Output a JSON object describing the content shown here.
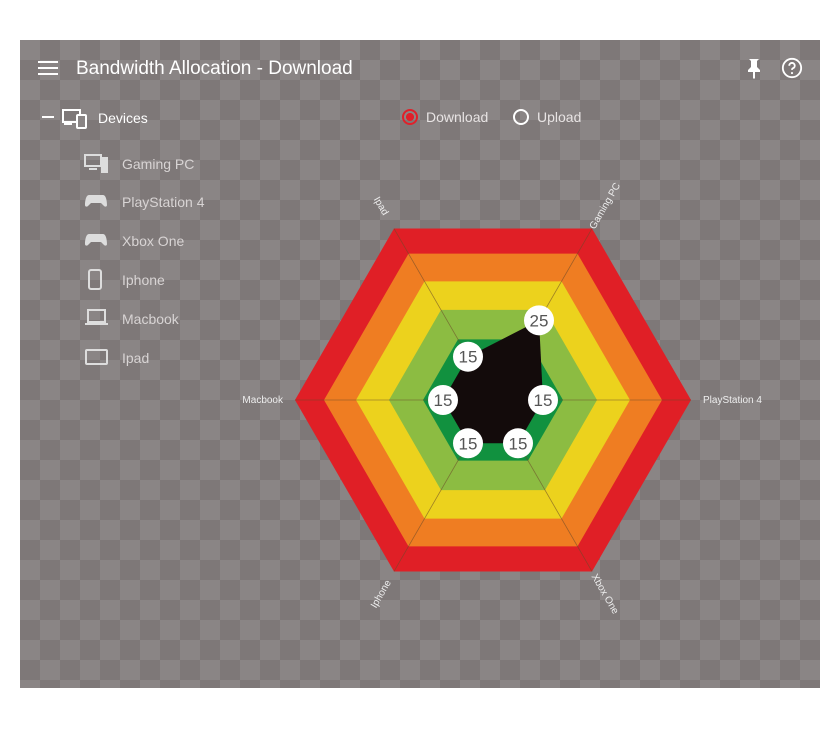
{
  "header": {
    "title": "Bandwidth Allocation - Download",
    "menu_icon": "hamburger-menu-icon",
    "pin_icon": "pin-icon",
    "help_icon": "help-circle-icon"
  },
  "sidebar": {
    "group_label": "Devices",
    "items": [
      {
        "label": "Gaming PC",
        "icon": "desktop-icon"
      },
      {
        "label": "PlayStation 4",
        "icon": "gamepad-icon"
      },
      {
        "label": "Xbox One",
        "icon": "gamepad-icon"
      },
      {
        "label": "Iphone",
        "icon": "phone-icon"
      },
      {
        "label": "Macbook",
        "icon": "laptop-icon"
      },
      {
        "label": "Ipad",
        "icon": "tablet-icon"
      }
    ]
  },
  "mode": {
    "options": [
      {
        "label": "Download",
        "selected": true
      },
      {
        "label": "Upload",
        "selected": false
      }
    ],
    "accent": "#e0202a"
  },
  "chart_data": {
    "type": "radar",
    "categories": [
      "Gaming PC",
      "PlayStation 4",
      "Xbox One",
      "Iphone",
      "Macbook",
      "Ipad"
    ],
    "values": [
      25,
      15,
      15,
      15,
      15,
      15
    ],
    "data_labels": [
      "25",
      "15",
      "15",
      "15",
      "15",
      "15"
    ],
    "ring_colors": [
      "#e01f26",
      "#ef7d22",
      "#ecd21d",
      "#8cbc42",
      "#11913f"
    ],
    "fill_color": "#130b0b"
  }
}
